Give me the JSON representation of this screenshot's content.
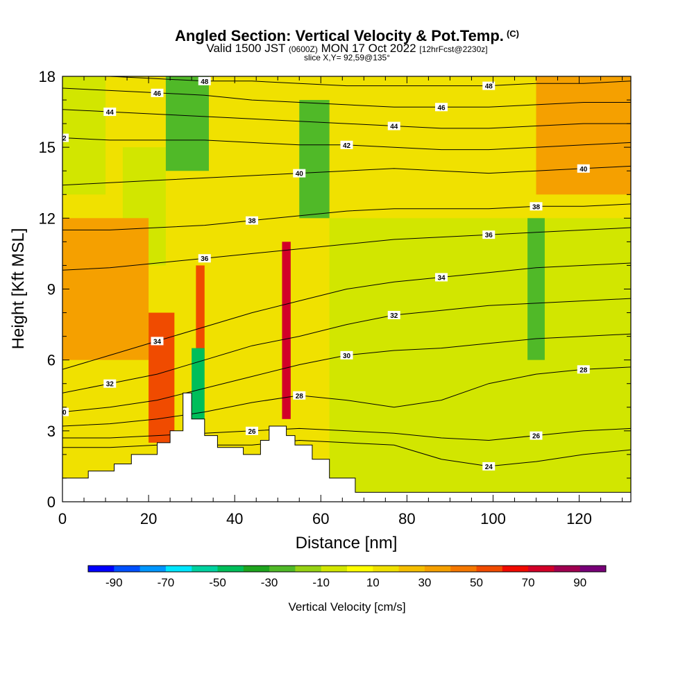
{
  "header": {
    "title": "Angled Section: Vertical Velocity & Pot.Temp.",
    "title_unit": "(C)",
    "valid_prefix": "Valid 1500 JST",
    "valid_utc": "(0600Z)",
    "valid_date": "MON 17 Oct 2022",
    "forecast": "[12hrFcst@2230z]",
    "slice": "slice X,Y= 92,59@135°"
  },
  "chart_data": {
    "type": "heatmap",
    "xlabel": "Distance [nm]",
    "ylabel": "Height [Kft MSL]",
    "xlim": [
      0,
      132
    ],
    "ylim": [
      0,
      18
    ],
    "x_ticks": [
      0,
      20,
      40,
      60,
      80,
      100,
      120
    ],
    "y_ticks": [
      0,
      3,
      6,
      9,
      12,
      15,
      18
    ],
    "colorbar": {
      "title": "Vertical Velocity [cm/s]",
      "tick_labels": [
        "-90",
        "-70",
        "-50",
        "-30",
        "-10",
        "10",
        "30",
        "50",
        "70",
        "90"
      ],
      "colors": [
        "#0000ff",
        "#0050ff",
        "#0096ff",
        "#00e6ff",
        "#00d2a0",
        "#00be5a",
        "#1ea51e",
        "#50b928",
        "#96d214",
        "#d2e600",
        "#ffff00",
        "#f0e100",
        "#f5be00",
        "#f5a000",
        "#f57800",
        "#f04b00",
        "#f00a00",
        "#d20028",
        "#a00050",
        "#780078",
        "#500078"
      ]
    },
    "velocity_field_cells": [
      {
        "x": [
          0,
          132
        ],
        "z": [
          0,
          18
        ],
        "w": 10
      },
      {
        "x": [
          0,
          10
        ],
        "z": [
          13,
          18
        ],
        "w": -10
      },
      {
        "x": [
          14,
          24
        ],
        "z": [
          10,
          15
        ],
        "w": -10
      },
      {
        "x": [
          24,
          34
        ],
        "z": [
          14,
          18
        ],
        "w": -30
      },
      {
        "x": [
          55,
          62
        ],
        "z": [
          12,
          17
        ],
        "w": -30
      },
      {
        "x": [
          62,
          132
        ],
        "z": [
          0,
          12
        ],
        "w": -10
      },
      {
        "x": [
          108,
          112
        ],
        "z": [
          6,
          12
        ],
        "w": -30
      },
      {
        "x": [
          0,
          20
        ],
        "z": [
          6,
          12
        ],
        "w": 30
      },
      {
        "x": [
          20,
          26
        ],
        "z": [
          2.5,
          8
        ],
        "w": 50
      },
      {
        "x": [
          31,
          33
        ],
        "z": [
          6,
          10
        ],
        "w": 50
      },
      {
        "x": [
          51,
          53
        ],
        "z": [
          3.5,
          11
        ],
        "w": 70
      },
      {
        "x": [
          30,
          33
        ],
        "z": [
          3,
          6.5
        ],
        "w": -50
      },
      {
        "x": [
          110,
          132
        ],
        "z": [
          13,
          18
        ],
        "w": 30
      }
    ],
    "terrain_profile": [
      {
        "x": 0,
        "z": 1.0
      },
      {
        "x": 6,
        "z": 1.0
      },
      {
        "x": 6,
        "z": 1.3
      },
      {
        "x": 12,
        "z": 1.3
      },
      {
        "x": 12,
        "z": 1.6
      },
      {
        "x": 16,
        "z": 1.6
      },
      {
        "x": 16,
        "z": 2.0
      },
      {
        "x": 22,
        "z": 2.0
      },
      {
        "x": 22,
        "z": 2.5
      },
      {
        "x": 25,
        "z": 2.5
      },
      {
        "x": 25,
        "z": 3.0
      },
      {
        "x": 28,
        "z": 3.0
      },
      {
        "x": 28,
        "z": 4.6
      },
      {
        "x": 30,
        "z": 4.6
      },
      {
        "x": 30,
        "z": 3.5
      },
      {
        "x": 33,
        "z": 3.5
      },
      {
        "x": 33,
        "z": 2.8
      },
      {
        "x": 36,
        "z": 2.8
      },
      {
        "x": 36,
        "z": 2.3
      },
      {
        "x": 42,
        "z": 2.3
      },
      {
        "x": 42,
        "z": 2.0
      },
      {
        "x": 46,
        "z": 2.0
      },
      {
        "x": 46,
        "z": 2.6
      },
      {
        "x": 48,
        "z": 2.6
      },
      {
        "x": 48,
        "z": 3.2
      },
      {
        "x": 52,
        "z": 3.2
      },
      {
        "x": 52,
        "z": 2.8
      },
      {
        "x": 54,
        "z": 2.8
      },
      {
        "x": 54,
        "z": 2.4
      },
      {
        "x": 58,
        "z": 2.4
      },
      {
        "x": 58,
        "z": 1.8
      },
      {
        "x": 62,
        "z": 1.8
      },
      {
        "x": 62,
        "z": 1.0
      },
      {
        "x": 68,
        "z": 1.0
      },
      {
        "x": 68,
        "z": 0.4
      },
      {
        "x": 132,
        "z": 0.4
      }
    ],
    "isentropes": [
      {
        "label": "24",
        "z": [
          2.3,
          2.3,
          2.4,
          2.4,
          2.4,
          2.6,
          2.5,
          2.4,
          1.8,
          1.5,
          1.7,
          2.0,
          2.2
        ]
      },
      {
        "label": "26",
        "z": [
          2.7,
          2.7,
          2.8,
          2.9,
          3.0,
          3.1,
          3.0,
          2.9,
          2.7,
          2.6,
          2.8,
          3.0,
          3.1
        ]
      },
      {
        "label": "28",
        "z": [
          3.2,
          3.3,
          3.5,
          3.8,
          4.2,
          4.5,
          4.3,
          4.0,
          4.3,
          5.0,
          5.4,
          5.6,
          5.7
        ]
      },
      {
        "label": "30",
        "z": [
          3.8,
          4.0,
          4.3,
          4.8,
          5.3,
          5.8,
          6.2,
          6.4,
          6.5,
          6.7,
          6.9,
          7.0,
          7.1
        ]
      },
      {
        "label": "32",
        "z": [
          4.6,
          5.0,
          5.4,
          6.0,
          6.6,
          7.0,
          7.5,
          7.9,
          8.1,
          8.3,
          8.4,
          8.5,
          8.6
        ]
      },
      {
        "label": "34",
        "z": [
          5.6,
          6.2,
          6.8,
          7.4,
          8.0,
          8.5,
          9.0,
          9.3,
          9.5,
          9.7,
          9.9,
          10.0,
          10.1
        ]
      },
      {
        "label": "36",
        "z": [
          9.8,
          9.9,
          10.1,
          10.3,
          10.5,
          10.7,
          10.9,
          11.1,
          11.2,
          11.3,
          11.4,
          11.5,
          11.6
        ]
      },
      {
        "label": "38",
        "z": [
          11.5,
          11.5,
          11.6,
          11.7,
          11.9,
          12.1,
          12.3,
          12.4,
          12.4,
          12.4,
          12.5,
          12.5,
          12.6
        ]
      },
      {
        "label": "40",
        "z": [
          13.4,
          13.5,
          13.6,
          13.7,
          13.8,
          13.9,
          14.0,
          14.1,
          14.0,
          13.9,
          14.0,
          14.1,
          14.2
        ]
      },
      {
        "label": "42",
        "z": [
          15.4,
          15.3,
          15.3,
          15.3,
          15.2,
          15.1,
          15.1,
          15.0,
          14.9,
          14.9,
          15.0,
          15.1,
          15.2
        ]
      },
      {
        "label": "44",
        "z": [
          16.6,
          16.5,
          16.4,
          16.3,
          16.2,
          16.1,
          16.0,
          15.9,
          15.8,
          15.8,
          15.9,
          16.0,
          16.0
        ]
      },
      {
        "label": "46",
        "z": [
          17.5,
          17.4,
          17.3,
          17.2,
          17.0,
          16.9,
          16.8,
          16.7,
          16.7,
          16.7,
          16.8,
          16.9,
          16.9
        ]
      },
      {
        "label": "48",
        "z": [
          18.0,
          18.0,
          17.9,
          17.8,
          17.8,
          17.7,
          17.6,
          17.6,
          17.6,
          17.6,
          17.7,
          17.7,
          17.8
        ]
      }
    ],
    "isentrope_x": [
      0,
      11,
      22,
      33,
      44,
      55,
      66,
      77,
      88,
      99,
      110,
      121,
      132
    ]
  }
}
